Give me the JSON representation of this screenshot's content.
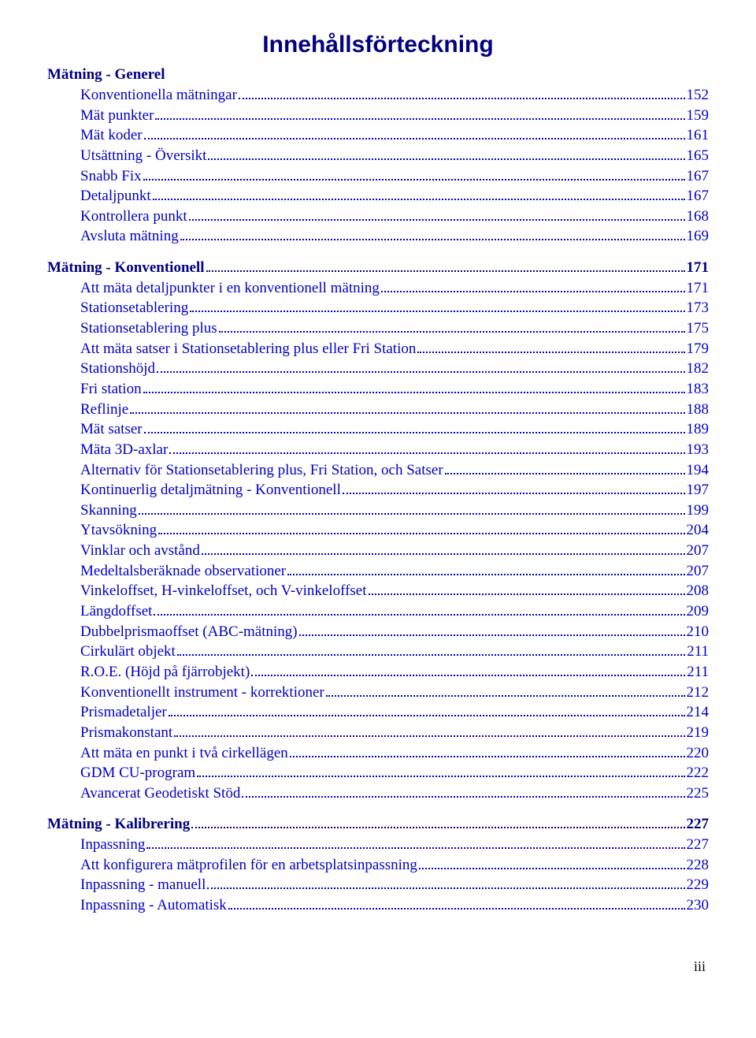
{
  "title": "Innehållsförteckning",
  "colors": {
    "title": "#000082",
    "section": "#000082",
    "entry": "#0000c8",
    "dots": "#0000c8",
    "background": "#ffffff"
  },
  "typography": {
    "title_font": "Arial",
    "title_size_pt": 22,
    "title_weight": "bold",
    "body_font": "Times New Roman",
    "body_size_pt": 14
  },
  "footer_page": "iii",
  "sections": [
    {
      "heading": "Mätning -  Generel",
      "page": null,
      "entries": [
        {
          "label": "Konventionella mätningar",
          "page": "152"
        },
        {
          "label": "Mät punkter",
          "page": "159"
        },
        {
          "label": "Mät koder",
          "page": "161"
        },
        {
          "label": "Utsättning -  Översikt",
          "page": "165"
        },
        {
          "label": "Snabb Fix",
          "page": "167"
        },
        {
          "label": "Detaljpunkt",
          "page": "167"
        },
        {
          "label": "Kontrollera punkt",
          "page": "168"
        },
        {
          "label": "Avsluta mätning",
          "page": "169"
        }
      ]
    },
    {
      "heading": "Mätning -  Konventionell",
      "page": "171",
      "entries": [
        {
          "label": "Att mäta detaljpunkter i en konventionell mätning",
          "page": "171"
        },
        {
          "label": "Stationsetablering",
          "page": "173"
        },
        {
          "label": "Stationsetablering plus",
          "page": "175"
        },
        {
          "label": "Att mäta satser i Stationsetablering plus eller Fri Station",
          "page": "179"
        },
        {
          "label": "Stationshöjd",
          "page": "182"
        },
        {
          "label": "Fri station",
          "page": "183"
        },
        {
          "label": "Reflinje",
          "page": "188"
        },
        {
          "label": "Mät satser",
          "page": "189"
        },
        {
          "label": "Mäta 3D-axlar",
          "page": "193"
        },
        {
          "label": "Alternativ för Stationsetablering plus, Fri Station, och Satser",
          "page": "194"
        },
        {
          "label": "Kontinuerlig detaljmätning -  Konventionell",
          "page": "197"
        },
        {
          "label": "Skanning",
          "page": "199"
        },
        {
          "label": "Ytavsökning",
          "page": "204"
        },
        {
          "label": "Vinklar och avstånd",
          "page": "207"
        },
        {
          "label": "Medeltalsberäknade observationer",
          "page": "207"
        },
        {
          "label": " Vinkeloffset, H-vinkeloffset,  och V-vinkeloffset",
          "page": "208"
        },
        {
          "label": "Längdoffset",
          "page": "209"
        },
        {
          "label": "Dubbelprismaoffset (ABC-mätning)",
          "page": "210"
        },
        {
          "label": "Cirkulärt objekt",
          "page": "211"
        },
        {
          "label": "R.O.E. (Höjd på fjärrobjekt)",
          "page": "211"
        },
        {
          "label": "Konventionellt instrument -  korrektioner",
          "page": "212"
        },
        {
          "label": "Prismadetaljer",
          "page": "214"
        },
        {
          "label": "Prismakonstant",
          "page": "219"
        },
        {
          "label": "Att mäta en punkt i två cirkellägen",
          "page": "220"
        },
        {
          "label": "GDM CU-program",
          "page": "222"
        },
        {
          "label": "Avancerat Geodetiskt Stöd",
          "page": "225"
        }
      ]
    },
    {
      "heading": "Mätning -  Kalibrering",
      "page": "227",
      "entries": [
        {
          "label": "Inpassning",
          "page": "227"
        },
        {
          "label": "Att konfigurera mätprofilen för en arbetsplatsinpassning",
          "page": "228"
        },
        {
          "label": "Inpassning -  manuell",
          "page": "229"
        },
        {
          "label": "Inpassning -  Automatisk",
          "page": "230"
        }
      ]
    }
  ]
}
